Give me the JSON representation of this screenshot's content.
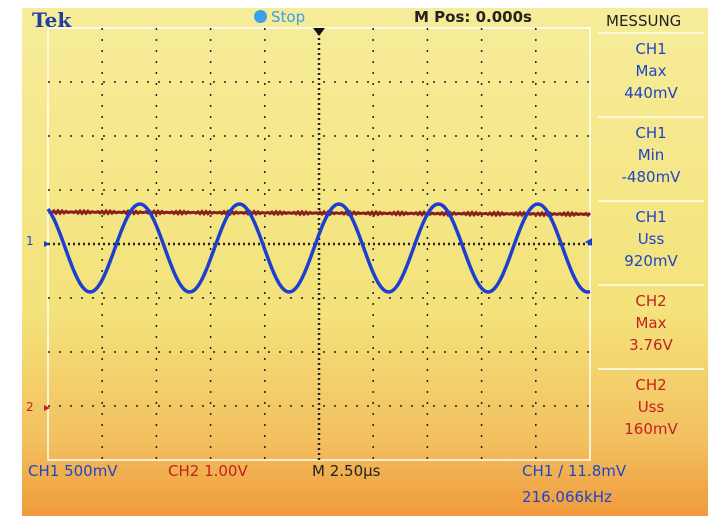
{
  "header": {
    "brand": "Tek",
    "status": "Stop",
    "position": "M Pos: 0.000s",
    "menu": "MESSUNG"
  },
  "measurements": [
    {
      "channel": "CH1",
      "type": "Max",
      "value": "440mV"
    },
    {
      "channel": "CH1",
      "type": "Min",
      "value": "-480mV"
    },
    {
      "channel": "CH1",
      "type": "Uss",
      "value": "920mV"
    },
    {
      "channel": "CH2",
      "type": "Max",
      "value": "3.76V"
    },
    {
      "channel": "CH2",
      "type": "Uss",
      "value": "160mV"
    }
  ],
  "markers": {
    "ch1": "1",
    "ch2": "2"
  },
  "footer": {
    "ch1_scale": "CH1 500mV",
    "ch2_scale": "CH2 1.00V",
    "timebase": "M 2.50µs",
    "trigger": "CH1 / 11.8mV",
    "frequency": "216.066kHz"
  }
}
